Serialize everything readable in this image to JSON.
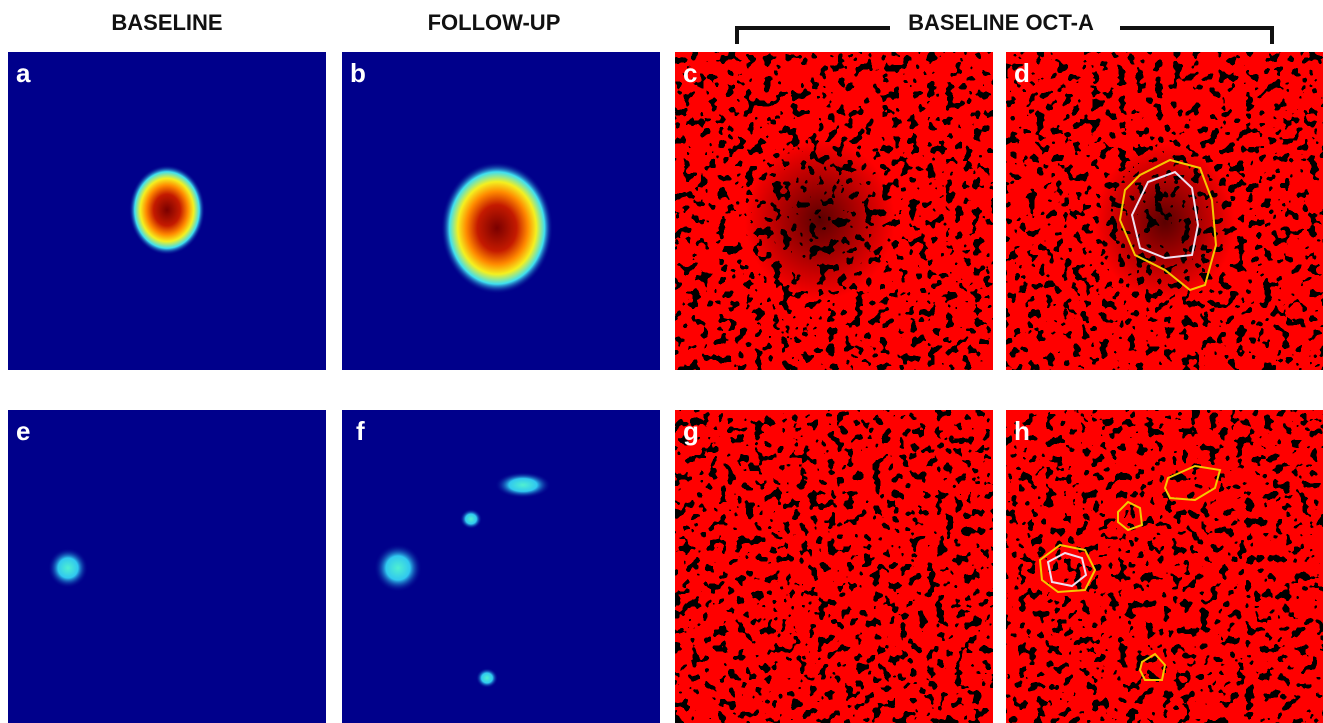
{
  "headers": {
    "baseline": "BASELINE",
    "follow_up": "FOLLOW-UP",
    "octa": "BASELINE OCT-A"
  },
  "panels": [
    {
      "label": "a"
    },
    {
      "label": "b"
    },
    {
      "label": "c"
    },
    {
      "label": "d"
    },
    {
      "label": "e"
    },
    {
      "label": "f"
    },
    {
      "label": "g"
    },
    {
      "label": "h"
    }
  ]
}
